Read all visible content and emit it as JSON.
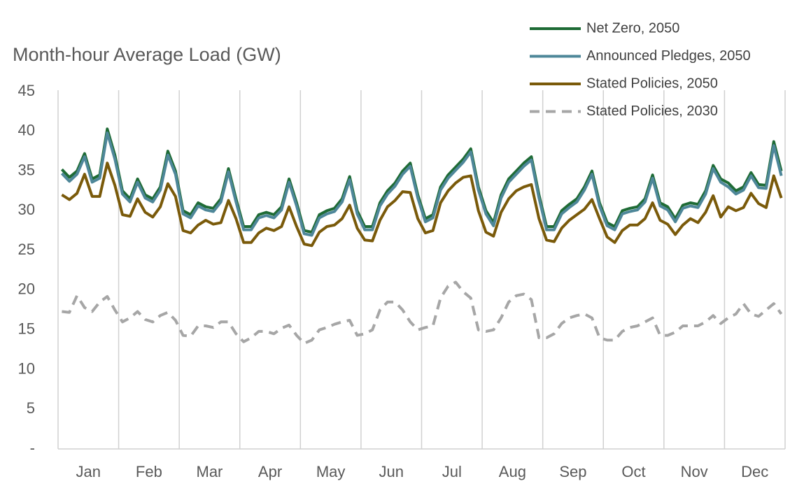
{
  "chart_data": {
    "type": "line",
    "title": "Month-hour Average Load (GW)",
    "categories": [
      "Jan",
      "Feb",
      "Mar",
      "Apr",
      "May",
      "Jun",
      "Jul",
      "Aug",
      "Sep",
      "Oct",
      "Nov",
      "Dec"
    ],
    "ylim": [
      0,
      45
    ],
    "yticks": [
      {
        "value": 0,
        "label": "-"
      },
      5,
      10,
      15,
      20,
      25,
      30,
      35,
      40,
      45
    ],
    "legend": "top-right",
    "series": [
      {
        "name": "Net Zero, 2050",
        "color": "#1e6b35",
        "dashed": false,
        "values": [
          [
            35.2,
            34.2,
            35,
            37.2,
            34,
            34.5,
            40.3,
            37
          ],
          [
            32.5,
            31.5,
            34,
            32,
            31.5,
            33,
            37.5,
            35
          ],
          [
            30,
            29.5,
            31,
            30.5,
            30.3,
            31.5,
            35.3,
            31.5
          ],
          [
            28,
            28,
            29.5,
            29.8,
            29.5,
            30.5,
            34,
            31
          ],
          [
            27.5,
            27.3,
            29.5,
            30,
            30.3,
            31.5,
            34.3,
            30
          ],
          [
            28,
            28,
            31,
            32.5,
            33.5,
            35,
            36,
            32
          ],
          [
            29,
            29.5,
            33,
            34.5,
            35.5,
            36.5,
            37.8,
            33
          ],
          [
            30,
            28.5,
            32,
            34,
            35,
            36,
            36.8,
            32
          ],
          [
            28,
            28,
            30,
            30.8,
            31.5,
            33,
            35,
            31
          ],
          [
            28.5,
            28,
            30,
            30.3,
            30.5,
            31.5,
            34.5,
            31
          ],
          [
            30.5,
            29,
            30.7,
            31,
            30.8,
            32.5,
            35.7,
            34
          ],
          [
            33.5,
            32.5,
            33,
            34.8,
            33.3,
            33.2,
            38.7,
            35
          ]
        ]
      },
      {
        "name": "Announced Pledges, 2050",
        "color": "#4e8799",
        "dashed": false,
        "values": [
          [
            34.7,
            33.7,
            34.6,
            36.8,
            33.6,
            34.1,
            39.8,
            36.5
          ],
          [
            32.1,
            31.1,
            33.6,
            31.6,
            31.1,
            32.6,
            37,
            34.6
          ],
          [
            29.6,
            29.1,
            30.6,
            30.1,
            29.9,
            31.1,
            34.9,
            31.1
          ],
          [
            27.6,
            27.6,
            29.1,
            29.4,
            29.1,
            30.1,
            33.6,
            30.6
          ],
          [
            27.1,
            26.9,
            29.1,
            29.6,
            29.9,
            31.1,
            33.9,
            29.6
          ],
          [
            27.6,
            27.6,
            30.6,
            32.1,
            33.1,
            34.6,
            35.6,
            31.6
          ],
          [
            28.6,
            29.1,
            32.6,
            34.1,
            35.1,
            36.1,
            37.4,
            32.6
          ],
          [
            29.6,
            28.1,
            31.6,
            33.6,
            34.6,
            35.6,
            36.4,
            31.6
          ],
          [
            27.6,
            27.6,
            29.6,
            30.4,
            31.1,
            32.6,
            34.6,
            30.6
          ],
          [
            28.1,
            27.6,
            29.6,
            29.9,
            30.1,
            31.1,
            34.1,
            30.6
          ],
          [
            30.1,
            28.6,
            30.3,
            30.6,
            30.4,
            32.1,
            35.3,
            33.6
          ],
          [
            33,
            32.1,
            32.6,
            34.4,
            32.9,
            32.8,
            38.2,
            34.4
          ]
        ]
      },
      {
        "name": "Stated Policies, 2050",
        "color": "#7a5a0a",
        "dashed": false,
        "values": [
          [
            32,
            31.4,
            32.2,
            34.6,
            31.8,
            31.8,
            36,
            33.2
          ],
          [
            29.5,
            29.3,
            31.5,
            29.8,
            29.2,
            30.5,
            33.4,
            31.8
          ],
          [
            27.5,
            27.2,
            28.2,
            28.8,
            28.3,
            28.5,
            31.3,
            29
          ],
          [
            26,
            26,
            27.2,
            27.8,
            27.5,
            28,
            30.5,
            28
          ],
          [
            25.8,
            25.6,
            27.3,
            28,
            28.2,
            29,
            30.7,
            27.8
          ],
          [
            26.3,
            26.2,
            28.8,
            30.5,
            31.3,
            32.4,
            32.3,
            29
          ],
          [
            27.2,
            27.5,
            31,
            32.5,
            33.5,
            34.2,
            34.4,
            30
          ],
          [
            27.3,
            26.8,
            29.8,
            31.5,
            32.5,
            33,
            33.3,
            29
          ],
          [
            26.3,
            26.1,
            27.8,
            28.8,
            29.5,
            30.2,
            31.4,
            29
          ],
          [
            26.7,
            26,
            27.5,
            28.2,
            28.2,
            29,
            31,
            28.8
          ],
          [
            28.3,
            27,
            28.2,
            29,
            28.5,
            29.8,
            31.9,
            29.2
          ],
          [
            30.5,
            30,
            30.4,
            32.2,
            30.9,
            30.4,
            34.4,
            31.6
          ]
        ]
      },
      {
        "name": "Stated Policies, 2030",
        "color": "#a6a6a6",
        "dashed": true,
        "values": [
          [
            17.3,
            17.2,
            19.3,
            17.8,
            17.3,
            18.5,
            19.2,
            17.5
          ],
          [
            16,
            16.5,
            17.3,
            16.3,
            16,
            16.8,
            17.2,
            16.2
          ],
          [
            14.3,
            14.2,
            15.5,
            15.5,
            15.3,
            16,
            16,
            14.5
          ],
          [
            13.5,
            14,
            14.8,
            14.8,
            14.5,
            15.2,
            15.6,
            14.3
          ],
          [
            13.3,
            13.7,
            15,
            15.3,
            15.7,
            16,
            16.2,
            14.3
          ],
          [
            14.5,
            15,
            17.5,
            18.5,
            18.5,
            17.5,
            16,
            15
          ],
          [
            15.3,
            15.5,
            19,
            20.5,
            21,
            19.8,
            19,
            15
          ],
          [
            14.8,
            15,
            16.5,
            18.5,
            19.3,
            19.5,
            18.8,
            14
          ],
          [
            14,
            14.5,
            15.8,
            16.5,
            16.8,
            17,
            16.5,
            14
          ],
          [
            13.7,
            13.7,
            14.8,
            15.3,
            15.5,
            16,
            16.5,
            14.3
          ],
          [
            14.3,
            14.7,
            15.5,
            15.5,
            15.5,
            16,
            16.8,
            15.8
          ],
          [
            16.5,
            17,
            18.3,
            17,
            16.7,
            17.5,
            18.3,
            17
          ]
        ]
      }
    ]
  }
}
